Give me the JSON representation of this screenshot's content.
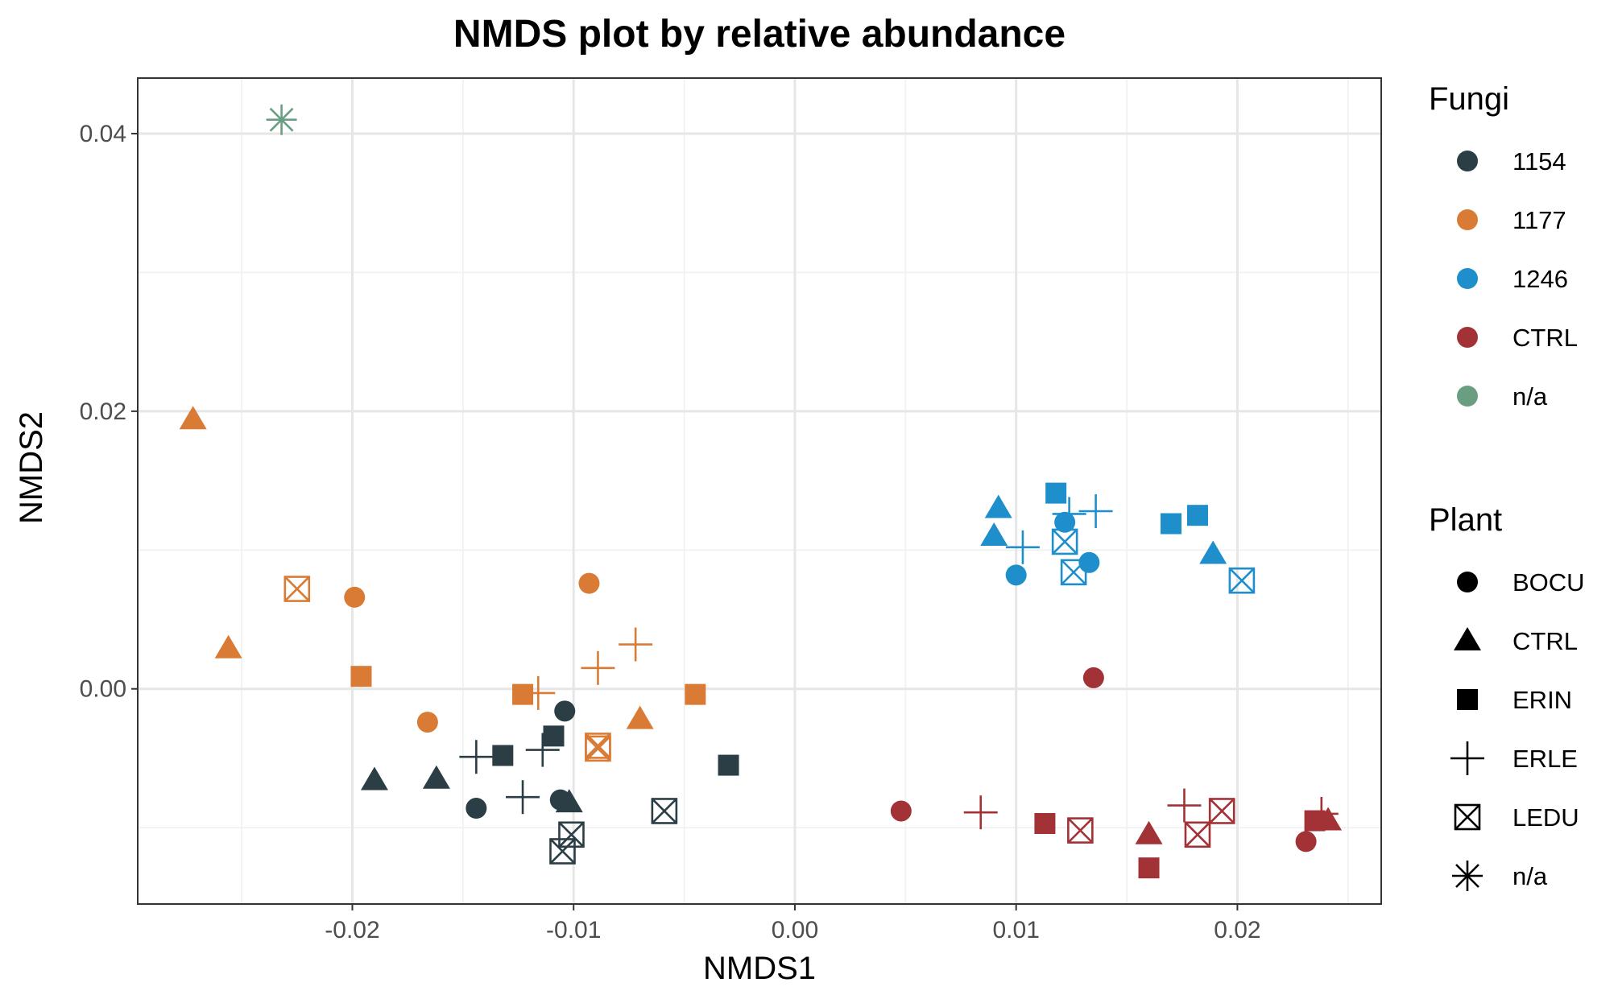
{
  "chart_data": {
    "type": "scatter",
    "title": "NMDS plot by relative abundance",
    "xlabel": "NMDS1",
    "ylabel": "NMDS2",
    "xlim": [
      -0.0297,
      0.0265
    ],
    "ylim": [
      -0.0155,
      0.044
    ],
    "x_ticks": [
      -0.02,
      -0.01,
      0.0,
      0.01,
      0.02
    ],
    "x_tick_labels": [
      "-0.02",
      "-0.01",
      "0.00",
      "0.01",
      "0.02"
    ],
    "y_ticks": [
      0.0,
      0.02,
      0.04
    ],
    "y_tick_labels": [
      "0.00",
      "0.02",
      "0.04"
    ],
    "grid": true,
    "legends": [
      {
        "title": "Fungi",
        "aesthetic": "color",
        "entries": [
          {
            "label": "1154",
            "color": "#2b3d45"
          },
          {
            "label": "1177",
            "color": "#d97b35"
          },
          {
            "label": "1246",
            "color": "#1f8fcc"
          },
          {
            "label": "CTRL",
            "color": "#a23236"
          },
          {
            "label": "n/a",
            "color": "#6a9e83"
          }
        ]
      },
      {
        "title": "Plant",
        "aesthetic": "shape",
        "entries": [
          {
            "label": "BOCU",
            "shape": "circle"
          },
          {
            "label": "CTRL",
            "shape": "triangle"
          },
          {
            "label": "ERIN",
            "shape": "square"
          },
          {
            "label": "ERLE",
            "shape": "plus"
          },
          {
            "label": "LEDU",
            "shape": "boxx"
          },
          {
            "label": "n/a",
            "shape": "asterisk"
          }
        ]
      }
    ],
    "points": [
      {
        "x": -0.0232,
        "y": 0.041,
        "fungi": "n/a",
        "plant": "n/a"
      },
      {
        "x": -0.0272,
        "y": 0.0194,
        "fungi": "1177",
        "plant": "CTRL"
      },
      {
        "x": -0.0256,
        "y": 0.0029,
        "fungi": "1177",
        "plant": "CTRL"
      },
      {
        "x": -0.007,
        "y": -0.0022,
        "fungi": "1177",
        "plant": "CTRL"
      },
      {
        "x": -0.0199,
        "y": 0.0066,
        "fungi": "1177",
        "plant": "BOCU"
      },
      {
        "x": -0.0093,
        "y": 0.0076,
        "fungi": "1177",
        "plant": "BOCU"
      },
      {
        "x": -0.0166,
        "y": -0.0024,
        "fungi": "1177",
        "plant": "BOCU"
      },
      {
        "x": -0.0196,
        "y": 0.0009,
        "fungi": "1177",
        "plant": "ERIN"
      },
      {
        "x": -0.0123,
        "y": -0.0004,
        "fungi": "1177",
        "plant": "ERIN"
      },
      {
        "x": -0.0045,
        "y": -0.0004,
        "fungi": "1177",
        "plant": "ERIN"
      },
      {
        "x": -0.0116,
        "y": -0.0003,
        "fungi": "1177",
        "plant": "ERLE"
      },
      {
        "x": -0.0089,
        "y": 0.0015,
        "fungi": "1177",
        "plant": "ERLE"
      },
      {
        "x": -0.0072,
        "y": 0.0032,
        "fungi": "1177",
        "plant": "ERLE"
      },
      {
        "x": -0.0225,
        "y": 0.0072,
        "fungi": "1177",
        "plant": "LEDU"
      },
      {
        "x": -0.0089,
        "y": -0.0041,
        "fungi": "1177",
        "plant": "LEDU"
      },
      {
        "x": -0.0089,
        "y": -0.0043,
        "fungi": "1177",
        "plant": "LEDU"
      },
      {
        "x": -0.019,
        "y": -0.0066,
        "fungi": "1154",
        "plant": "CTRL"
      },
      {
        "x": -0.0162,
        "y": -0.0065,
        "fungi": "1154",
        "plant": "CTRL"
      },
      {
        "x": -0.0102,
        "y": -0.0082,
        "fungi": "1154",
        "plant": "CTRL"
      },
      {
        "x": -0.0104,
        "y": -0.0016,
        "fungi": "1154",
        "plant": "BOCU"
      },
      {
        "x": -0.0144,
        "y": -0.0086,
        "fungi": "1154",
        "plant": "BOCU"
      },
      {
        "x": -0.0106,
        "y": -0.008,
        "fungi": "1154",
        "plant": "BOCU"
      },
      {
        "x": -0.0132,
        "y": -0.0048,
        "fungi": "1154",
        "plant": "ERIN"
      },
      {
        "x": -0.0109,
        "y": -0.0034,
        "fungi": "1154",
        "plant": "ERIN"
      },
      {
        "x": -0.003,
        "y": -0.0055,
        "fungi": "1154",
        "plant": "ERIN"
      },
      {
        "x": -0.0144,
        "y": -0.0049,
        "fungi": "1154",
        "plant": "ERLE"
      },
      {
        "x": -0.0114,
        "y": -0.0044,
        "fungi": "1154",
        "plant": "ERLE"
      },
      {
        "x": -0.0123,
        "y": -0.0078,
        "fungi": "1154",
        "plant": "ERLE"
      },
      {
        "x": -0.0059,
        "y": -0.0088,
        "fungi": "1154",
        "plant": "LEDU"
      },
      {
        "x": -0.0101,
        "y": -0.0105,
        "fungi": "1154",
        "plant": "LEDU"
      },
      {
        "x": -0.0105,
        "y": -0.0117,
        "fungi": "1154",
        "plant": "LEDU"
      },
      {
        "x": 0.0092,
        "y": 0.013,
        "fungi": "1246",
        "plant": "CTRL"
      },
      {
        "x": 0.009,
        "y": 0.011,
        "fungi": "1246",
        "plant": "CTRL"
      },
      {
        "x": 0.0189,
        "y": 0.0097,
        "fungi": "1246",
        "plant": "CTRL"
      },
      {
        "x": 0.01,
        "y": 0.0082,
        "fungi": "1246",
        "plant": "BOCU"
      },
      {
        "x": 0.0122,
        "y": 0.012,
        "fungi": "1246",
        "plant": "BOCU"
      },
      {
        "x": 0.0133,
        "y": 0.0091,
        "fungi": "1246",
        "plant": "BOCU"
      },
      {
        "x": 0.0118,
        "y": 0.0141,
        "fungi": "1246",
        "plant": "ERIN"
      },
      {
        "x": 0.017,
        "y": 0.0119,
        "fungi": "1246",
        "plant": "ERIN"
      },
      {
        "x": 0.0182,
        "y": 0.0125,
        "fungi": "1246",
        "plant": "ERIN"
      },
      {
        "x": 0.0103,
        "y": 0.0102,
        "fungi": "1246",
        "plant": "ERLE"
      },
      {
        "x": 0.0124,
        "y": 0.0126,
        "fungi": "1246",
        "plant": "ERLE"
      },
      {
        "x": 0.0136,
        "y": 0.0128,
        "fungi": "1246",
        "plant": "ERLE"
      },
      {
        "x": 0.0122,
        "y": 0.0106,
        "fungi": "1246",
        "plant": "LEDU"
      },
      {
        "x": 0.0126,
        "y": 0.0084,
        "fungi": "1246",
        "plant": "LEDU"
      },
      {
        "x": 0.0202,
        "y": 0.0078,
        "fungi": "1246",
        "plant": "LEDU"
      },
      {
        "x": 0.0135,
        "y": 0.0008,
        "fungi": "CTRL",
        "plant": "BOCU"
      },
      {
        "x": 0.0048,
        "y": -0.0088,
        "fungi": "CTRL",
        "plant": "BOCU"
      },
      {
        "x": 0.0231,
        "y": -0.011,
        "fungi": "CTRL",
        "plant": "BOCU"
      },
      {
        "x": 0.016,
        "y": -0.0105,
        "fungi": "CTRL",
        "plant": "CTRL"
      },
      {
        "x": 0.0241,
        "y": -0.0095,
        "fungi": "CTRL",
        "plant": "CTRL"
      },
      {
        "x": 0.0113,
        "y": -0.0097,
        "fungi": "CTRL",
        "plant": "ERIN"
      },
      {
        "x": 0.016,
        "y": -0.0129,
        "fungi": "CTRL",
        "plant": "ERIN"
      },
      {
        "x": 0.0235,
        "y": -0.0095,
        "fungi": "CTRL",
        "plant": "ERIN"
      },
      {
        "x": 0.0084,
        "y": -0.0089,
        "fungi": "CTRL",
        "plant": "ERLE"
      },
      {
        "x": 0.0176,
        "y": -0.0084,
        "fungi": "CTRL",
        "plant": "ERLE"
      },
      {
        "x": 0.0238,
        "y": -0.009,
        "fungi": "CTRL",
        "plant": "ERLE"
      },
      {
        "x": 0.0129,
        "y": -0.0102,
        "fungi": "CTRL",
        "plant": "LEDU"
      },
      {
        "x": 0.0182,
        "y": -0.0105,
        "fungi": "CTRL",
        "plant": "LEDU"
      },
      {
        "x": 0.0193,
        "y": -0.0088,
        "fungi": "CTRL",
        "plant": "LEDU"
      }
    ]
  }
}
